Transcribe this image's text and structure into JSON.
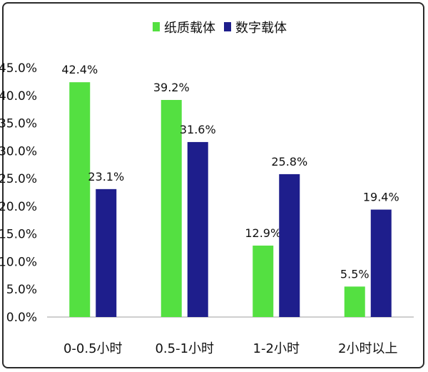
{
  "chart_data": {
    "type": "bar",
    "categories": [
      "0-0.5小时",
      "0.5-1小时",
      "1-2小时",
      "2小时以上"
    ],
    "series": [
      {
        "name": "纸质载体",
        "values": [
          42.4,
          39.2,
          12.9,
          5.5
        ],
        "color": "#54e041"
      },
      {
        "name": "数字载体",
        "values": [
          23.1,
          31.6,
          25.8,
          19.4
        ],
        "color": "#1e1e8c"
      }
    ],
    "data_labels": [
      [
        "42.4%",
        "39.2%",
        "12.9%",
        "5.5%"
      ],
      [
        "23.1%",
        "31.6%",
        "25.8%",
        "19.4%"
      ]
    ],
    "y_ticks": [
      {
        "value": 0,
        "label": "0.0%"
      },
      {
        "value": 5,
        "label": "5.0%"
      },
      {
        "value": 10,
        "label": "10.0%"
      },
      {
        "value": 15,
        "label": "15.0%"
      },
      {
        "value": 20,
        "label": "20.0%"
      },
      {
        "value": 25,
        "label": "25.0%"
      },
      {
        "value": 30,
        "label": "30.0%"
      },
      {
        "value": 35,
        "label": "35.0%"
      },
      {
        "value": 40,
        "label": "40.0%"
      },
      {
        "value": 45,
        "label": "45.0%"
      }
    ],
    "ylim": [
      0,
      45
    ],
    "grid": false,
    "legend": "top-center",
    "title": "",
    "xlabel": "",
    "ylabel": ""
  }
}
